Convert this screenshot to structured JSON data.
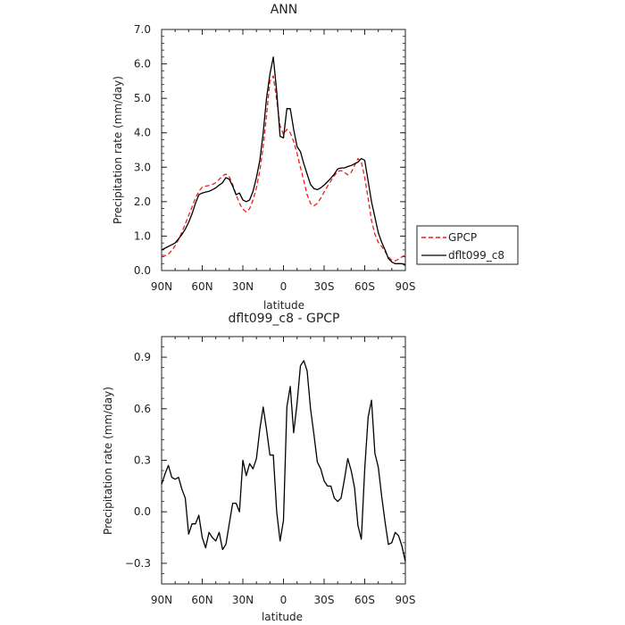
{
  "chart_data": [
    {
      "type": "line",
      "title": "ANN",
      "xlabel": "latitude",
      "ylabel": "Precipitation rate (mm/day)",
      "x_tick_labels": [
        "90N",
        "60N",
        "30N",
        "0",
        "30S",
        "60S",
        "90S"
      ],
      "x_tick_values": [
        -90,
        -60,
        -30,
        0,
        30,
        60,
        90
      ],
      "y_tick_labels": [
        "0.0",
        "1.0",
        "2.0",
        "3.0",
        "4.0",
        "5.0",
        "6.0",
        "7.0"
      ],
      "xlim": [
        -90,
        90
      ],
      "ylim": [
        0,
        7
      ],
      "legend_position": "right",
      "series": [
        {
          "name": "GPCP",
          "color": "#e8201c",
          "dash": "dashed",
          "x": [
            -90,
            -87.5,
            -85,
            -82.5,
            -80,
            -77.5,
            -75,
            -72.5,
            -70,
            -67.5,
            -65,
            -62.5,
            -60,
            -57.5,
            -55,
            -52.5,
            -50,
            -47.5,
            -45,
            -42.5,
            -40,
            -37.5,
            -35,
            -32.5,
            -30,
            -27.5,
            -25,
            -22.5,
            -20,
            -17.5,
            -15,
            -12.5,
            -10,
            -7.5,
            -5,
            -2.5,
            0,
            2.5,
            5,
            7.5,
            10,
            12.5,
            15,
            17.5,
            20,
            22.5,
            25,
            27.5,
            30,
            32.5,
            35,
            37.5,
            40,
            42.5,
            45,
            47.5,
            50,
            52.5,
            55,
            57.5,
            60,
            62.5,
            65,
            67.5,
            70,
            72.5,
            75,
            77.5,
            80,
            82.5,
            85,
            87.5,
            90
          ],
          "y": [
            0.45,
            0.43,
            0.48,
            0.58,
            0.72,
            0.9,
            1.12,
            1.35,
            1.6,
            1.85,
            2.1,
            2.3,
            2.42,
            2.45,
            2.47,
            2.5,
            2.55,
            2.65,
            2.75,
            2.8,
            2.72,
            2.5,
            2.2,
            1.95,
            1.78,
            1.7,
            1.8,
            2.05,
            2.4,
            2.9,
            3.6,
            4.5,
            5.5,
            5.65,
            4.95,
            4.2,
            3.95,
            4.1,
            4.0,
            3.75,
            3.4,
            3.0,
            2.6,
            2.2,
            1.95,
            1.88,
            1.95,
            2.1,
            2.28,
            2.45,
            2.6,
            2.75,
            2.88,
            2.9,
            2.85,
            2.78,
            2.85,
            3.05,
            3.25,
            3.15,
            2.7,
            2.1,
            1.45,
            1.05,
            0.82,
            0.7,
            0.55,
            0.4,
            0.3,
            0.28,
            0.33,
            0.4,
            0.45
          ]
        },
        {
          "name": "dflt099_c8",
          "color": "#000000",
          "dash": "solid",
          "x": [
            -90,
            -87.5,
            -85,
            -82.5,
            -80,
            -77.5,
            -75,
            -72.5,
            -70,
            -67.5,
            -65,
            -62.5,
            -60,
            -57.5,
            -55,
            -52.5,
            -50,
            -47.5,
            -45,
            -42.5,
            -40,
            -37.5,
            -35,
            -32.5,
            -30,
            -27.5,
            -25,
            -22.5,
            -20,
            -17.5,
            -15,
            -12.5,
            -10,
            -7.5,
            -5,
            -2.5,
            0,
            2.5,
            5,
            7.5,
            10,
            12.5,
            15,
            17.5,
            20,
            22.5,
            25,
            27.5,
            30,
            32.5,
            35,
            37.5,
            40,
            42.5,
            45,
            47.5,
            50,
            52.5,
            55,
            57.5,
            60,
            62.5,
            65,
            67.5,
            70,
            72.5,
            75,
            77.5,
            80,
            82.5,
            85,
            87.5,
            90
          ],
          "y": [
            0.6,
            0.65,
            0.7,
            0.75,
            0.8,
            0.92,
            1.05,
            1.2,
            1.4,
            1.65,
            1.95,
            2.2,
            2.25,
            2.28,
            2.3,
            2.35,
            2.4,
            2.48,
            2.55,
            2.7,
            2.65,
            2.45,
            2.2,
            2.25,
            2.05,
            2.0,
            2.05,
            2.3,
            2.7,
            3.2,
            4.0,
            5.0,
            5.7,
            6.2,
            5.2,
            3.9,
            3.85,
            4.7,
            4.7,
            4.1,
            3.6,
            3.45,
            3.1,
            2.8,
            2.5,
            2.38,
            2.35,
            2.4,
            2.48,
            2.58,
            2.68,
            2.8,
            2.95,
            2.98,
            2.98,
            3.02,
            3.05,
            3.1,
            3.15,
            3.25,
            3.2,
            2.6,
            2.0,
            1.55,
            1.1,
            0.82,
            0.6,
            0.35,
            0.25,
            0.2,
            0.2,
            0.2,
            0.15
          ]
        }
      ]
    },
    {
      "type": "line",
      "title": "dflt099_c8 - GPCP",
      "xlabel": "latitude",
      "ylabel": "Precipitation rate (mm/day)",
      "x_tick_labels": [
        "90N",
        "60N",
        "30N",
        "0",
        "30S",
        "60S",
        "90S"
      ],
      "x_tick_values": [
        -90,
        -60,
        -30,
        0,
        30,
        60,
        90
      ],
      "y_tick_labels": [
        "−0.3",
        "0.0",
        "0.3",
        "0.6",
        "0.9"
      ],
      "y_tick_values": [
        -0.3,
        0,
        0.3,
        0.6,
        0.9
      ],
      "xlim": [
        -90,
        90
      ],
      "ylim": [
        -0.42,
        1.02
      ],
      "series": [
        {
          "color": "#000000",
          "dash": "solid",
          "x": [
            -90,
            -87.5,
            -85,
            -82.5,
            -80,
            -77.5,
            -75,
            -72.5,
            -70,
            -67.5,
            -65,
            -62.5,
            -60,
            -57.5,
            -55,
            -52.5,
            -50,
            -47.5,
            -45,
            -42.5,
            -40,
            -37.5,
            -35,
            -32.5,
            -30,
            -27.5,
            -25,
            -22.5,
            -20,
            -17.5,
            -15,
            -12.5,
            -10,
            -7.5,
            -5,
            -2.5,
            0,
            2.5,
            5,
            7.5,
            10,
            12.5,
            15,
            17.5,
            20,
            22.5,
            25,
            27.5,
            30,
            32.5,
            35,
            37.5,
            40,
            42.5,
            45,
            47.5,
            50,
            52.5,
            55,
            57.5,
            60,
            62.5,
            65,
            67.5,
            70,
            72.5,
            75,
            77.5,
            80,
            82.5,
            85,
            87.5,
            90
          ],
          "y": [
            0.16,
            0.22,
            0.27,
            0.2,
            0.19,
            0.2,
            0.13,
            0.08,
            -0.13,
            -0.07,
            -0.07,
            -0.02,
            -0.15,
            -0.21,
            -0.12,
            -0.15,
            -0.17,
            -0.12,
            -0.22,
            -0.19,
            -0.07,
            0.05,
            0.05,
            0.0,
            0.3,
            0.21,
            0.28,
            0.25,
            0.31,
            0.48,
            0.61,
            0.48,
            0.33,
            0.33,
            0.0,
            -0.17,
            -0.05,
            0.61,
            0.73,
            0.46,
            0.63,
            0.85,
            0.88,
            0.82,
            0.6,
            0.45,
            0.29,
            0.25,
            0.18,
            0.15,
            0.15,
            0.08,
            0.06,
            0.08,
            0.19,
            0.31,
            0.24,
            0.14,
            -0.08,
            -0.16,
            0.25,
            0.55,
            0.65,
            0.34,
            0.26,
            0.09,
            -0.06,
            -0.19,
            -0.18,
            -0.12,
            -0.14,
            -0.2,
            -0.29
          ]
        }
      ]
    }
  ]
}
